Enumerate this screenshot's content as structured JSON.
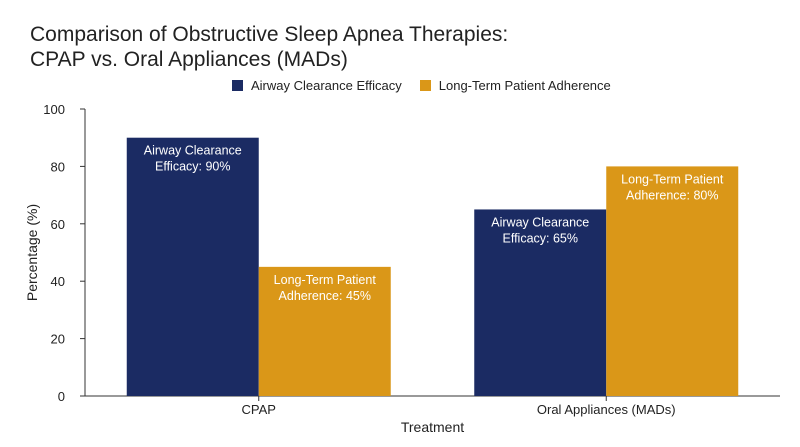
{
  "chart_data": {
    "type": "bar",
    "title_lines": [
      "Comparison of Obstructive Sleep Apnea Therapies:",
      "CPAP vs. Oral Appliances (MADs)"
    ],
    "xlabel": "Treatment",
    "ylabel": "Percentage (%)",
    "ylim": [
      0,
      100
    ],
    "yticks": [
      0,
      20,
      40,
      60,
      80,
      100
    ],
    "categories": [
      "CPAP",
      "Oral Appliances (MADs)"
    ],
    "series": [
      {
        "name": "Airway Clearance Efficacy",
        "values": [
          90,
          65
        ],
        "color": "#1b2b63",
        "data_labels": [
          [
            "Airway Clearance",
            "Efficacy: 90%"
          ],
          [
            "Airway Clearance",
            "Efficacy: 65%"
          ]
        ]
      },
      {
        "name": "Long-Term Patient Adherence",
        "values": [
          45,
          80
        ],
        "color": "#da9718",
        "data_labels": [
          [
            "Long-Term Patient",
            "Adherence: 45%"
          ],
          [
            "Long-Term Patient",
            "Adherence: 80%"
          ]
        ]
      }
    ],
    "legend": "top",
    "grid": false
  }
}
